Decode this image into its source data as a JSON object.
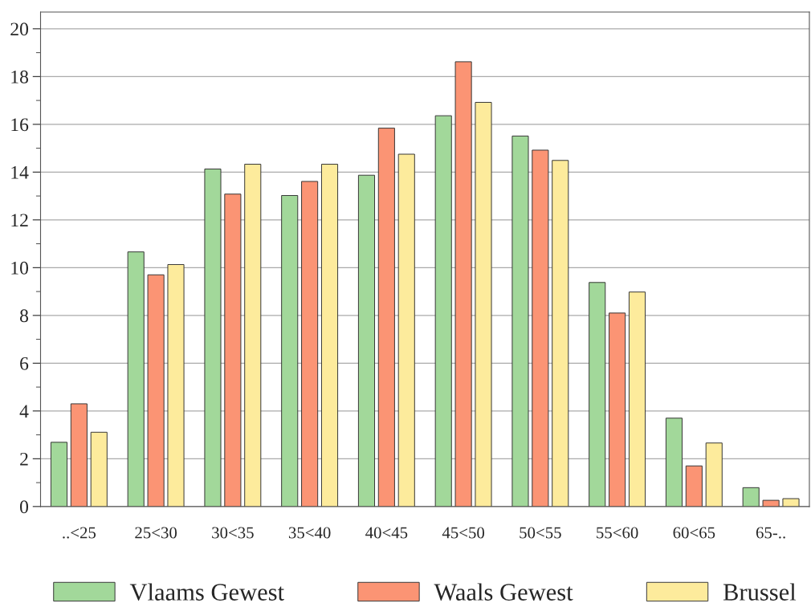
{
  "chart_data": {
    "type": "bar",
    "categories": [
      "..<25",
      "25<30",
      "30<35",
      "35<40",
      "40<45",
      "45<50",
      "50<55",
      "55<60",
      "60<65",
      "65-.."
    ],
    "series": [
      {
        "name": "Vlaams Gewest",
        "color": "#a2d89a",
        "values": [
          2.69,
          10.66,
          14.13,
          13.02,
          13.87,
          16.36,
          15.51,
          9.38,
          3.7,
          0.79
        ]
      },
      {
        "name": "Waals Gewest",
        "color": "#fb9474",
        "values": [
          4.3,
          9.7,
          13.08,
          13.61,
          15.84,
          18.62,
          14.92,
          8.1,
          1.7,
          0.26
        ]
      },
      {
        "name": "Brussel",
        "color": "#fdeb9c",
        "values": [
          3.11,
          10.13,
          14.33,
          14.33,
          14.75,
          16.92,
          14.49,
          8.98,
          2.66,
          0.33
        ]
      }
    ],
    "ylim": [
      0,
      20.7
    ],
    "yticks": [
      0,
      {
        "value": 1,
        "label": null
      },
      2,
      {
        "value": 3,
        "label": null
      },
      4,
      {
        "value": 5,
        "label": null
      },
      6,
      {
        "value": 7,
        "label": null
      },
      8,
      {
        "value": 9,
        "label": null
      },
      10,
      {
        "value": 11,
        "label": null
      },
      12,
      {
        "value": 13,
        "label": null
      },
      14,
      {
        "value": 15,
        "label": null
      },
      16,
      {
        "value": 17,
        "label": null
      },
      18,
      {
        "value": 19,
        "label": null
      },
      20
    ],
    "grid": "y",
    "legend": "bottom"
  }
}
